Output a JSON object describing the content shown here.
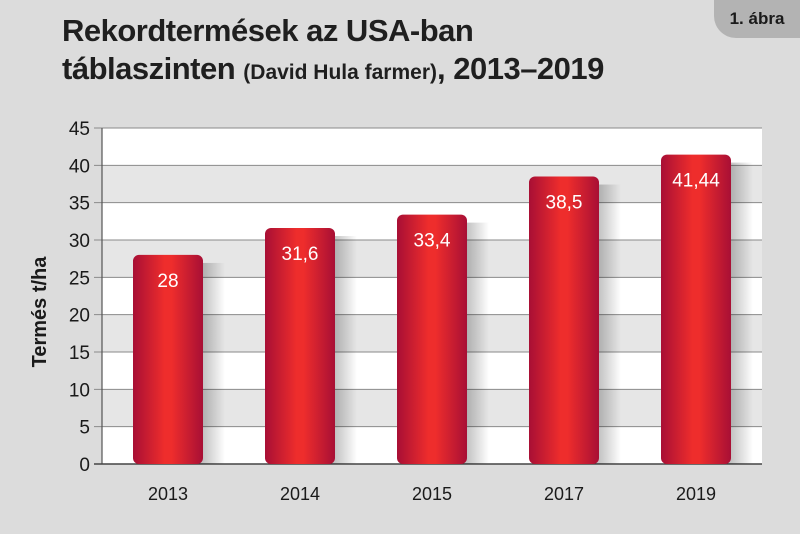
{
  "badge": "1. ábra",
  "title": {
    "line1": "Rekordtermések az USA-ban",
    "line2_main": "táblaszinten",
    "line2_paren": "(David Hula farmer)",
    "line2_years": ", 2013–2019"
  },
  "colors": {
    "background": "#dcdcdc",
    "plot_background": "#ffffff",
    "grid_band": "#e6e6e6",
    "bar_edge": "#b5123a",
    "bar_center": "#ef2f2a",
    "value_label": "#ffffff"
  },
  "chart_data": {
    "type": "bar",
    "title": "Rekordtermések az USA-ban táblaszinten (David Hula farmer), 2013–2019",
    "xlabel": "",
    "ylabel": "Termés t/ha",
    "categories": [
      "2013",
      "2014",
      "2015",
      "2017",
      "2019"
    ],
    "values": [
      28,
      31.6,
      33.4,
      38.5,
      41.44
    ],
    "value_labels": [
      "28",
      "31,6",
      "33,4",
      "38,5",
      "41,44"
    ],
    "ylim": [
      0,
      45
    ],
    "yticks": [
      0,
      5,
      10,
      15,
      20,
      25,
      30,
      35,
      40,
      45
    ],
    "grid": true,
    "legend": "none"
  }
}
